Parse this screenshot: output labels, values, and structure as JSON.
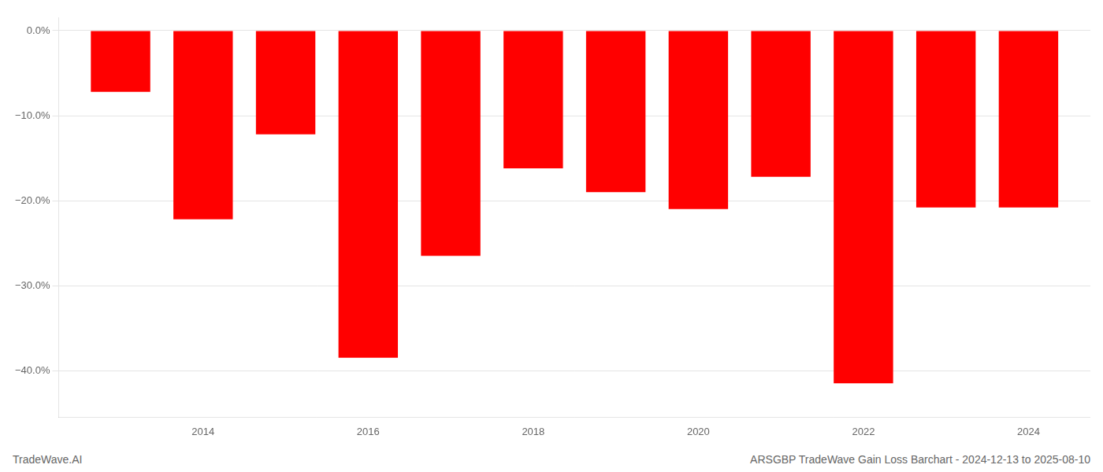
{
  "chart_data": {
    "type": "bar",
    "title": "ARSGBP TradeWave Gain Loss Barchart - 2024-12-13 to 2025-08-10",
    "annotations": [
      "TradeWave.AI"
    ],
    "x": [
      2013,
      2014,
      2015,
      2016,
      2017,
      2018,
      2019,
      2020,
      2021,
      2022,
      2023,
      2024
    ],
    "values": [
      -0.072,
      -0.222,
      -0.122,
      -0.385,
      -0.265,
      -0.162,
      -0.19,
      -0.21,
      -0.172,
      -0.415,
      -0.208,
      -0.208
    ],
    "color": "#ff0000",
    "xlim": [
      2012.25,
      2024.75
    ],
    "xticks": [
      2014,
      2016,
      2018,
      2020,
      2022,
      2024
    ],
    "ylim": [
      -0.455,
      0.015
    ],
    "yticks": [
      {
        "value": 0.0,
        "label": "0.0%"
      },
      {
        "value": -0.1,
        "label": "−10.0%"
      },
      {
        "value": -0.2,
        "label": "−20.0%"
      },
      {
        "value": -0.3,
        "label": "−30.0%"
      },
      {
        "value": -0.4,
        "label": "−40.0%"
      }
    ],
    "grid": true
  }
}
